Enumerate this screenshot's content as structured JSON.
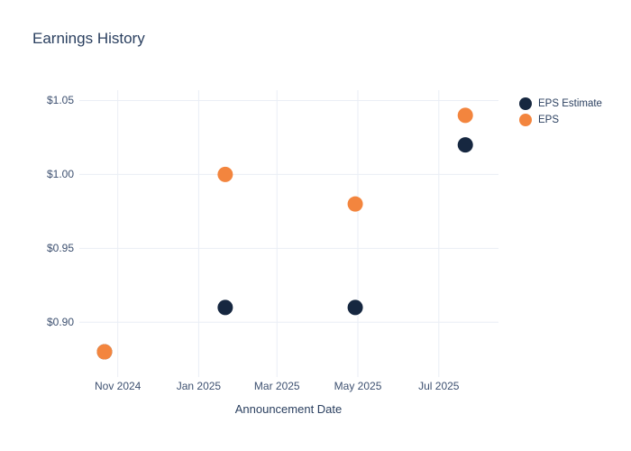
{
  "chart_data": {
    "type": "scatter",
    "title": "Earnings History",
    "xlabel": "Announcement Date",
    "ylabel": "",
    "grid": true,
    "legend_position": "right",
    "background_color": "#ffffff",
    "grid_color": "#eaeef5",
    "text_color": "#2a3f5f",
    "xlim": [
      "2024-10-03",
      "2025-08-15"
    ],
    "ylim": [
      0.866,
      1.057
    ],
    "x_ticks": [
      {
        "date": "2024-11-01",
        "label": "Nov 2024"
      },
      {
        "date": "2025-01-01",
        "label": "Jan 2025"
      },
      {
        "date": "2025-03-01",
        "label": "Mar 2025"
      },
      {
        "date": "2025-05-01",
        "label": "May 2025"
      },
      {
        "date": "2025-07-01",
        "label": "Jul 2025"
      }
    ],
    "y_ticks": [
      {
        "value": 0.9,
        "label": "$0.90"
      },
      {
        "value": 0.95,
        "label": "$0.95"
      },
      {
        "value": 1.0,
        "label": "$1.00"
      },
      {
        "value": 1.05,
        "label": "$1.05"
      }
    ],
    "series": [
      {
        "name": "EPS Estimate",
        "color": "#162740",
        "marker": "circle",
        "points": [
          {
            "x": "2024-10-22",
            "y": 0.88
          },
          {
            "x": "2025-01-21",
            "y": 0.91
          },
          {
            "x": "2025-04-29",
            "y": 0.91
          },
          {
            "x": "2025-07-21",
            "y": 1.02
          }
        ]
      },
      {
        "name": "EPS",
        "color": "#f3853e",
        "marker": "circle",
        "points": [
          {
            "x": "2024-10-22",
            "y": 0.88
          },
          {
            "x": "2025-01-21",
            "y": 1.0
          },
          {
            "x": "2025-04-29",
            "y": 0.98
          },
          {
            "x": "2025-07-21",
            "y": 1.04
          }
        ]
      }
    ]
  }
}
